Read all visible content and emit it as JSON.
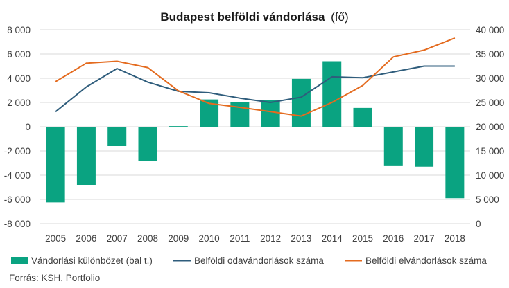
{
  "title_main": "Budapest belföldi vándorlása",
  "title_unit": "(fő)",
  "source": "Forrás: KSH, Portfolio",
  "colors": {
    "bar": "#0aa381",
    "inflow": "#2f5d7c",
    "outflow": "#e46b1f",
    "grid": "#d9d9d9",
    "text": "#404040"
  },
  "chart_data": {
    "type": "bar+line",
    "categories": [
      "2005",
      "2006",
      "2007",
      "2008",
      "2009",
      "2010",
      "2011",
      "2012",
      "2013",
      "2014",
      "2015",
      "2016",
      "2017",
      "2018"
    ],
    "left_axis": {
      "ylim": [
        -8000,
        8000
      ],
      "ticks": [
        8000,
        6000,
        4000,
        2000,
        0,
        -2000,
        -4000,
        -6000,
        -8000
      ],
      "tick_labels": [
        "8 000",
        "6 000",
        "4 000",
        "2 000",
        "0",
        "-2 000",
        "-4 000",
        "-6 000",
        "-8 000"
      ]
    },
    "right_axis": {
      "ylim": [
        0,
        40000
      ],
      "ticks": [
        40000,
        35000,
        30000,
        25000,
        20000,
        15000,
        10000,
        5000,
        0
      ],
      "tick_labels": [
        "40 000",
        "35 000",
        "30 000",
        "25 000",
        "20 000",
        "15 000",
        "10 000",
        "5 000",
        "0"
      ]
    },
    "series": [
      {
        "name": "Vándorlási különbözet (bal t.)",
        "kind": "bar",
        "axis": "left",
        "values": [
          -6250,
          -4800,
          -1600,
          -2800,
          50,
          2250,
          2050,
          2200,
          3950,
          5400,
          1550,
          -3250,
          -3300,
          -5900
        ]
      },
      {
        "name": "Belföldi odavándorlások száma",
        "kind": "line",
        "axis": "right",
        "values": [
          23100,
          28200,
          32000,
          29200,
          27300,
          27000,
          25900,
          25000,
          26100,
          30300,
          30100,
          31300,
          32500,
          32500
        ]
      },
      {
        "name": "Belföldi elvándorlások száma",
        "kind": "line",
        "axis": "right",
        "values": [
          29300,
          33100,
          33500,
          32200,
          27400,
          24800,
          24000,
          23100,
          22200,
          25000,
          28500,
          34400,
          35800,
          38300
        ]
      }
    ]
  }
}
